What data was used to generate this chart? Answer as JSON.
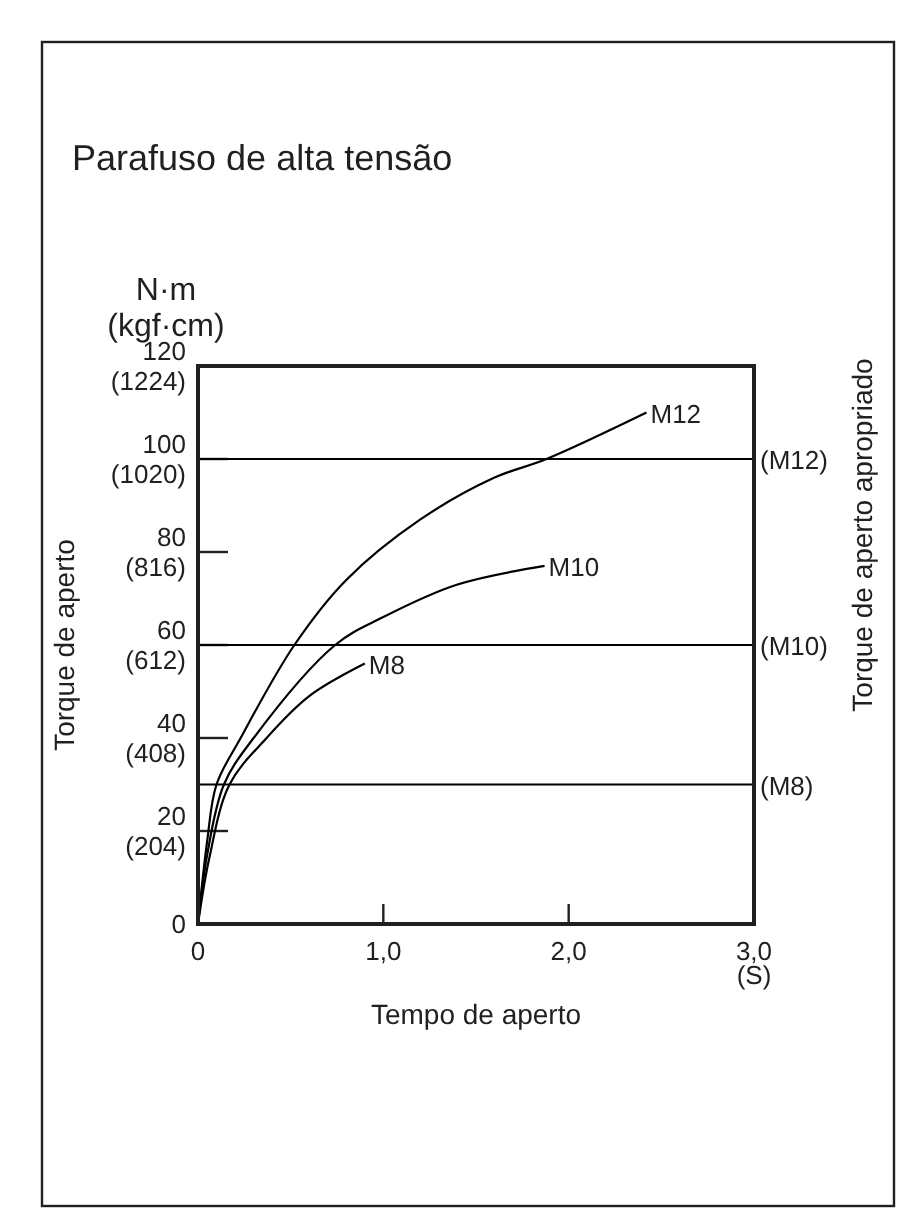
{
  "chart_data": {
    "type": "line",
    "title": "Parafuso de alta tensão",
    "xlabel": "Tempo de aperto",
    "annotations": [
      "N·m\n(kgf·cm)",
      "Torque de aperto apropriado",
      "Torque de aperto"
    ],
    "xlim": [
      0,
      3
    ],
    "xticks": [
      0,
      {
        "value": 1,
        "label": "1,0"
      },
      {
        "value": 2,
        "label": "2,0"
      },
      {
        "value": 3,
        "label": "3,0\n(S)"
      }
    ],
    "ylim": [
      0,
      120
    ],
    "yticks": [
      0,
      20,
      40,
      60,
      80,
      100,
      120
    ],
    "y2lim": [
      0,
      1224
    ],
    "y2ticks": [
      {
        "value": 204,
        "label": "(204)"
      },
      {
        "value": 408,
        "label": "(408)"
      },
      {
        "value": 612,
        "label": "(612)"
      },
      {
        "value": 816,
        "label": "(816)"
      },
      {
        "value": 1020,
        "label": "(1020)"
      },
      {
        "value": 1224,
        "label": "(1224)"
      }
    ],
    "grid": false,
    "marker": "none",
    "line_style": "solid",
    "ref_lines": [
      {
        "axis": "y",
        "value": 100,
        "label": "(M12)",
        "color": "#000000"
      },
      {
        "axis": "y",
        "value": 60,
        "label": "(M10)",
        "color": "#000000"
      },
      {
        "axis": "y",
        "value": 30,
        "label": "(M8)",
        "color": "#000000"
      }
    ],
    "series": [
      {
        "name": "M12",
        "color": "#000000",
        "x": [
          0,
          0.05,
          0.1,
          0.23,
          0.52,
          0.8,
          1.2,
          1.6,
          1.88,
          2.42
        ],
        "values": [
          0,
          18,
          30,
          40,
          60,
          74,
          87,
          96,
          100,
          110
        ]
      },
      {
        "name": "M10",
        "color": "#000000",
        "x": [
          0,
          0.05,
          0.14,
          0.3,
          0.74,
          1.0,
          1.4,
          1.87
        ],
        "values": [
          0,
          15,
          30,
          40,
          60,
          66,
          73,
          77
        ]
      },
      {
        "name": "M8",
        "color": "#000000",
        "x": [
          0,
          0.06,
          0.17,
          0.37,
          0.6,
          0.9
        ],
        "values": [
          0,
          14,
          30,
          40,
          49,
          56
        ]
      }
    ]
  }
}
